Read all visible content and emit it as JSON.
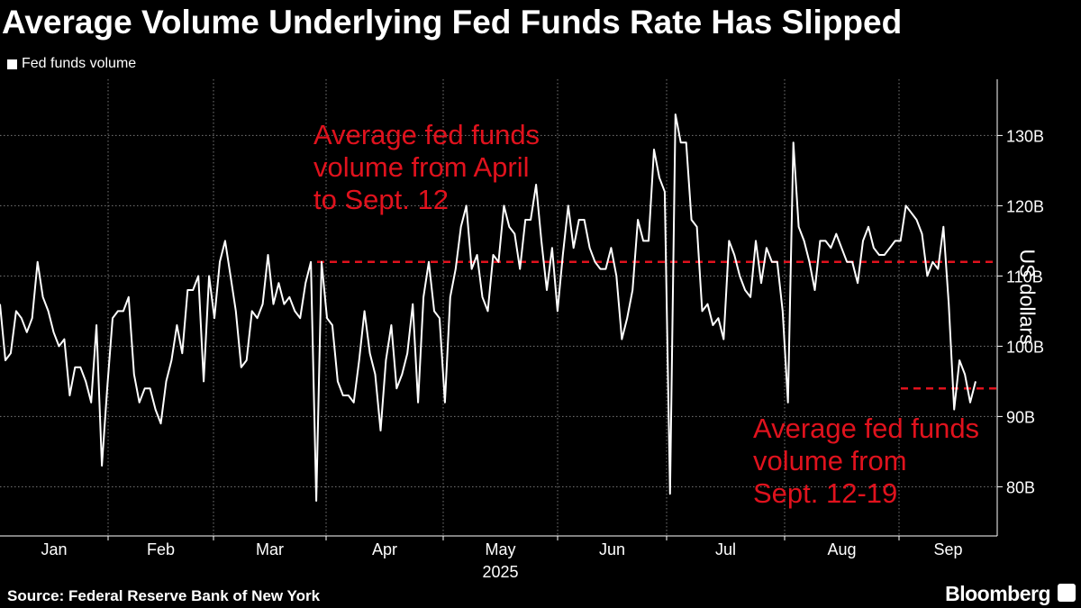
{
  "header": {
    "title": "Average Volume Underlying Fed Funds Rate Has Slipped"
  },
  "footer": {
    "source": "Source: Federal Reserve Bank of New York",
    "brand": "Bloomberg"
  },
  "colors": {
    "background": "#000000",
    "line": "#ffffff",
    "reference": "#e0121d",
    "grid": "#7a7a7a"
  },
  "chart_data": {
    "type": "line",
    "title": "Average Volume Underlying Fed Funds Rate Has Slipped",
    "ylabel": "US dollars",
    "xlabel": "2025",
    "ylim": [
      73,
      138
    ],
    "y_ticks": [
      80,
      90,
      100,
      110,
      120,
      130
    ],
    "y_tick_labels": [
      "80B",
      "90B",
      "100B",
      "110B",
      "120B",
      "130B"
    ],
    "y_axis_side": "right",
    "months": [
      "Jan",
      "Feb",
      "Mar",
      "Apr",
      "May",
      "Jun",
      "Jul",
      "Aug",
      "Sep"
    ],
    "year_label": "2025",
    "grid": true,
    "legend_position": "top-left",
    "series": [
      {
        "name": "Fed funds volume",
        "color": "#ffffff",
        "values": [
          106,
          98,
          99,
          105,
          104,
          102,
          104,
          112,
          107,
          105,
          102,
          100,
          101,
          93,
          97,
          97,
          95,
          92,
          103,
          83,
          94,
          104,
          105,
          105,
          107,
          96,
          92,
          94,
          94,
          91,
          89,
          95,
          98,
          103,
          99,
          108,
          108,
          110,
          95,
          110,
          104,
          112,
          115,
          110,
          105,
          97,
          98,
          105,
          104,
          106,
          113,
          106,
          109,
          106,
          107,
          105,
          104,
          109,
          112,
          78,
          112,
          104,
          103,
          95,
          93,
          93,
          92,
          98,
          105,
          99,
          96,
          88,
          98,
          103,
          94,
          96,
          99,
          106,
          92,
          107,
          112,
          105,
          104,
          92,
          107,
          111,
          117,
          120,
          111,
          113,
          107,
          105,
          113,
          112,
          120,
          117,
          116,
          111,
          118,
          118,
          123,
          115,
          108,
          114,
          105,
          113,
          120,
          114,
          118,
          118,
          114,
          112,
          111,
          111,
          114,
          110,
          101,
          104,
          108,
          118,
          115,
          115,
          128,
          124,
          122,
          79,
          133,
          129,
          129,
          118,
          117,
          105,
          106,
          103,
          104,
          101,
          115,
          113,
          110,
          108,
          107,
          115,
          109,
          114,
          112,
          112,
          105,
          92,
          129,
          117,
          115,
          112,
          108,
          115,
          115,
          114,
          116,
          114,
          112,
          112,
          109,
          115,
          117,
          114,
          113,
          113,
          114,
          115,
          115,
          120,
          119,
          118,
          116,
          110,
          112,
          111,
          117,
          106,
          91,
          98,
          96,
          92,
          95
        ]
      }
    ],
    "reference_lines": [
      {
        "value": 112,
        "label": "Average fed funds volume from April to Sept. 12",
        "label_lines": [
          "Average fed funds",
          "volume from April",
          "to Sept. 12"
        ]
      },
      {
        "value": 94,
        "label": "Average fed funds volume from Sept. 12-19",
        "label_lines": [
          "Average fed funds",
          "volume from",
          "Sept. 12-19"
        ]
      }
    ]
  }
}
